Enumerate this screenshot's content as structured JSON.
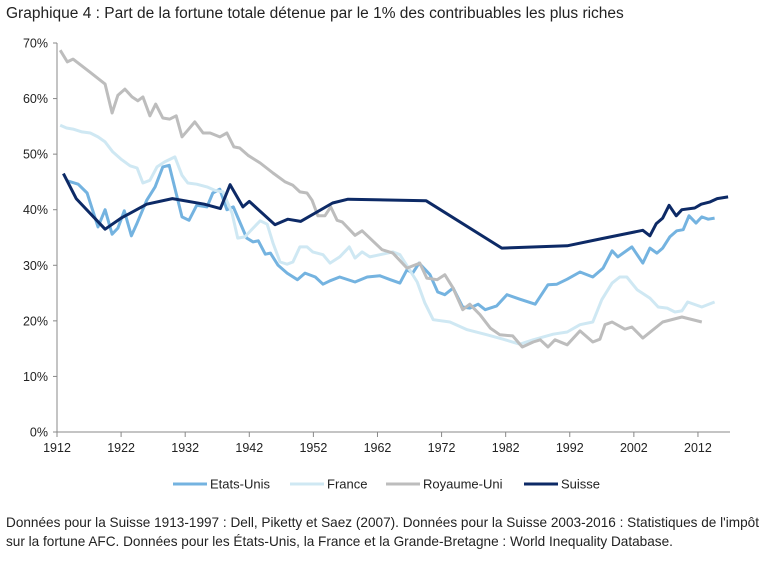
{
  "title": "Graphique 4 : Part de la fortune totale détenue par le 1% des contribuables les plus riches",
  "note": "Données pour la Suisse 1913-1997 : Dell, Piketty et Saez (2007). Données pour la Suisse 2003-2016 : Statistiques de l'impôt sur la fortune AFC. Données pour les États-Unis, la France et la Grande-Bretagne : World Inequality Database.",
  "chart_data": {
    "type": "line",
    "title": "Graphique 4 : Part de la fortune totale détenue par le 1% des contribuables les plus riches",
    "xlabel": "",
    "ylabel": "",
    "xlim": [
      1912,
      2017
    ],
    "ylim": [
      0,
      70
    ],
    "x_ticks": [
      "1912",
      "1922",
      "1932",
      "1942",
      "1952",
      "1962",
      "1972",
      "1982",
      "1992",
      "2002",
      "2012"
    ],
    "y_ticks": [
      "0%",
      "10%",
      "20%",
      "30%",
      "40%",
      "50%",
      "60%",
      "70%"
    ],
    "grid": false,
    "legend_position": "bottom",
    "series": [
      {
        "name": "Etats-Unis",
        "color": "#74b3e0",
        "points": [
          [
            1913.6,
            45.2
          ],
          [
            1915.3,
            44.6
          ],
          [
            1916.7,
            43
          ],
          [
            1918.4,
            36.9
          ],
          [
            1919.5,
            40
          ],
          [
            1920.6,
            35.6
          ],
          [
            1921.5,
            36.7
          ],
          [
            1922.5,
            39.8
          ],
          [
            1923.6,
            35.3
          ],
          [
            1924.5,
            37.6
          ],
          [
            1926,
            41.7
          ],
          [
            1927.3,
            44.1
          ],
          [
            1928.5,
            47.7
          ],
          [
            1929.5,
            48
          ],
          [
            1931.5,
            38.7
          ],
          [
            1932.6,
            38.1
          ],
          [
            1933.8,
            40.8
          ],
          [
            1935.4,
            40.5
          ],
          [
            1936.3,
            43
          ],
          [
            1937.4,
            43.7
          ],
          [
            1938.5,
            40
          ],
          [
            1939.5,
            40.5
          ],
          [
            1941.6,
            34.9
          ],
          [
            1942.6,
            34.2
          ],
          [
            1943.4,
            34.4
          ],
          [
            1944.5,
            32
          ],
          [
            1945.3,
            32.2
          ],
          [
            1946.5,
            30
          ],
          [
            1947.9,
            28.6
          ],
          [
            1949.5,
            27.4
          ],
          [
            1950.7,
            28.6
          ],
          [
            1952.3,
            27.9
          ],
          [
            1953.5,
            26.6
          ],
          [
            1954.6,
            27.2
          ],
          [
            1956.1,
            27.9
          ],
          [
            1958.5,
            27
          ],
          [
            1960.4,
            27.9
          ],
          [
            1962.4,
            28.1
          ],
          [
            1964,
            27.4
          ],
          [
            1965.5,
            26.8
          ],
          [
            1966.6,
            29.2
          ],
          [
            1967.5,
            28.6
          ],
          [
            1968.5,
            30.4
          ],
          [
            1970.2,
            28.3
          ],
          [
            1971.4,
            25.2
          ],
          [
            1972.5,
            24.7
          ],
          [
            1973.8,
            25.9
          ],
          [
            1975.3,
            22.5
          ],
          [
            1976.4,
            22.3
          ],
          [
            1977.7,
            23
          ],
          [
            1978.8,
            22
          ],
          [
            1980.6,
            22.7
          ],
          [
            1982.2,
            24.7
          ],
          [
            1984.2,
            23.9
          ],
          [
            1986.6,
            23
          ],
          [
            1988.6,
            26.5
          ],
          [
            1990,
            26.6
          ],
          [
            1991.6,
            27.5
          ],
          [
            1993.6,
            28.8
          ],
          [
            1995.6,
            27.9
          ],
          [
            1997.2,
            29.5
          ],
          [
            1998.6,
            32.6
          ],
          [
            1999.5,
            31.5
          ],
          [
            2001.7,
            33.3
          ],
          [
            2003.4,
            30.4
          ],
          [
            2004.5,
            33.1
          ],
          [
            2005.6,
            32.2
          ],
          [
            2006.5,
            33.1
          ],
          [
            2007.6,
            35.1
          ],
          [
            2008.7,
            36.2
          ],
          [
            2009.7,
            36.4
          ],
          [
            2010.6,
            38.9
          ],
          [
            2011.7,
            37.6
          ],
          [
            2012.6,
            38.7
          ],
          [
            2013.6,
            38.3
          ],
          [
            2014.6,
            38.5
          ]
        ]
      },
      {
        "name": "France",
        "color": "#cfe8f3",
        "points": [
          [
            1912.5,
            55.2
          ],
          [
            1913.5,
            54.7
          ],
          [
            1914.5,
            54.5
          ],
          [
            1915.9,
            54
          ],
          [
            1917.2,
            53.8
          ],
          [
            1918.4,
            53.1
          ],
          [
            1919.5,
            52.2
          ],
          [
            1920.7,
            50.4
          ],
          [
            1922.1,
            49
          ],
          [
            1923.4,
            47.9
          ],
          [
            1924.5,
            47.5
          ],
          [
            1925.4,
            44.8
          ],
          [
            1926.5,
            45.3
          ],
          [
            1927.6,
            47.7
          ],
          [
            1928.8,
            48.6
          ],
          [
            1930.4,
            49.5
          ],
          [
            1931.5,
            46.2
          ],
          [
            1932.4,
            44.8
          ],
          [
            1933.8,
            44.6
          ],
          [
            1935.4,
            44.1
          ],
          [
            1936.6,
            43.5
          ],
          [
            1937.9,
            43.2
          ],
          [
            1939.3,
            39.4
          ],
          [
            1940.2,
            34.9
          ],
          [
            1941.3,
            35.1
          ],
          [
            1942.6,
            36.7
          ],
          [
            1943.7,
            38
          ],
          [
            1944.8,
            37.4
          ],
          [
            1945.7,
            34
          ],
          [
            1946.8,
            30.6
          ],
          [
            1947.9,
            30.2
          ],
          [
            1948.8,
            30.6
          ],
          [
            1949.9,
            33.3
          ],
          [
            1951,
            33.3
          ],
          [
            1951.9,
            32.4
          ],
          [
            1953.5,
            31.9
          ],
          [
            1954.6,
            30.4
          ],
          [
            1956.1,
            31.5
          ],
          [
            1957.6,
            33.3
          ],
          [
            1958.5,
            31.3
          ],
          [
            1959.6,
            32.4
          ],
          [
            1960.8,
            31.5
          ],
          [
            1962.4,
            31.9
          ],
          [
            1964.4,
            32.4
          ],
          [
            1965.5,
            31.9
          ],
          [
            1967,
            29.2
          ],
          [
            1968.2,
            27
          ],
          [
            1969.4,
            23.2
          ],
          [
            1970.7,
            20.2
          ],
          [
            1973.3,
            19.8
          ],
          [
            1976,
            18.4
          ],
          [
            1979.1,
            17.5
          ],
          [
            1981.6,
            16.7
          ],
          [
            1984.2,
            15.8
          ],
          [
            1986.3,
            16.6
          ],
          [
            1989.4,
            17.6
          ],
          [
            1991.6,
            18
          ],
          [
            1993.6,
            19.3
          ],
          [
            1995.6,
            19.8
          ],
          [
            1997,
            23.8
          ],
          [
            1998.6,
            26.8
          ],
          [
            1999.8,
            27.9
          ],
          [
            2000.9,
            27.9
          ],
          [
            2002.5,
            25.6
          ],
          [
            2004.5,
            24.1
          ],
          [
            2005.8,
            22.5
          ],
          [
            2007.2,
            22.3
          ],
          [
            2008.4,
            21.6
          ],
          [
            2009.5,
            21.8
          ],
          [
            2010.4,
            23.4
          ],
          [
            2012.6,
            22.5
          ],
          [
            2014.6,
            23.4
          ]
        ]
      },
      {
        "name": "Royaume-Uni",
        "color": "#bdbdbd",
        "points": [
          [
            1912.5,
            68.7
          ],
          [
            1913.6,
            66.6
          ],
          [
            1914.5,
            67.1
          ],
          [
            1917.1,
            64.8
          ],
          [
            1919.5,
            62.6
          ],
          [
            1920.6,
            57.4
          ],
          [
            1921.5,
            60.6
          ],
          [
            1922.6,
            61.7
          ],
          [
            1923.7,
            60.3
          ],
          [
            1924.6,
            59.6
          ],
          [
            1925.4,
            60.3
          ],
          [
            1926.5,
            56.9
          ],
          [
            1927.4,
            59
          ],
          [
            1928.5,
            56.5
          ],
          [
            1929.6,
            56.3
          ],
          [
            1930.6,
            56.9
          ],
          [
            1931.5,
            53.1
          ],
          [
            1932.4,
            54.3
          ],
          [
            1933.5,
            55.8
          ],
          [
            1934.8,
            53.8
          ],
          [
            1935.9,
            53.8
          ],
          [
            1937.4,
            53.1
          ],
          [
            1938.5,
            53.8
          ],
          [
            1939.6,
            51.3
          ],
          [
            1940.5,
            51.1
          ],
          [
            1941.8,
            49.8
          ],
          [
            1943.7,
            48.4
          ],
          [
            1945.7,
            46.6
          ],
          [
            1947.6,
            45
          ],
          [
            1948.8,
            44.4
          ],
          [
            1949.9,
            43.2
          ],
          [
            1951,
            43
          ],
          [
            1951.8,
            41.7
          ],
          [
            1952.7,
            38.9
          ],
          [
            1953.8,
            38.9
          ],
          [
            1954.7,
            40.5
          ],
          [
            1955.7,
            38.1
          ],
          [
            1956.5,
            37.8
          ],
          [
            1958.5,
            35.4
          ],
          [
            1959.6,
            36.2
          ],
          [
            1962.7,
            32.8
          ],
          [
            1964.4,
            32.2
          ],
          [
            1966.6,
            29.5
          ],
          [
            1968.6,
            30.4
          ],
          [
            1969.7,
            27.7
          ],
          [
            1971.3,
            27.4
          ],
          [
            1972.5,
            28.3
          ],
          [
            1973.8,
            25.9
          ],
          [
            1975.3,
            22
          ],
          [
            1976.4,
            23
          ],
          [
            1978,
            21.1
          ],
          [
            1979.6,
            18.7
          ],
          [
            1981.1,
            17.5
          ],
          [
            1983.1,
            17.3
          ],
          [
            1984.6,
            15.3
          ],
          [
            1986.3,
            16.2
          ],
          [
            1987.4,
            16.6
          ],
          [
            1988.6,
            15.3
          ],
          [
            1989.7,
            16.6
          ],
          [
            1991.6,
            15.7
          ],
          [
            1993.6,
            18.2
          ],
          [
            1995.6,
            16.2
          ],
          [
            1996.7,
            16.7
          ],
          [
            1997.5,
            19.3
          ],
          [
            1998.6,
            19.8
          ],
          [
            2000.6,
            18.5
          ],
          [
            2001.7,
            18.9
          ],
          [
            2003.4,
            16.9
          ],
          [
            2006.5,
            19.8
          ],
          [
            2009.5,
            20.7
          ],
          [
            2012.6,
            19.8
          ]
        ]
      },
      {
        "name": "Suisse",
        "color": "#0d2a66",
        "points": [
          [
            1913,
            46.5
          ],
          [
            1915,
            42
          ],
          [
            1919.5,
            36.5
          ],
          [
            1922,
            38.5
          ],
          [
            1926,
            41
          ],
          [
            1930,
            42
          ],
          [
            1935,
            41
          ],
          [
            1937.5,
            40.2
          ],
          [
            1939,
            44.5
          ],
          [
            1941,
            40.5
          ],
          [
            1942,
            41.5
          ],
          [
            1946,
            37.3
          ],
          [
            1948,
            38.3
          ],
          [
            1950,
            37.9
          ],
          [
            1955,
            41.2
          ],
          [
            1957.4,
            41.9
          ],
          [
            1969.6,
            41.6
          ],
          [
            1981.4,
            33.1
          ],
          [
            1991.6,
            33.5
          ],
          [
            1997,
            34.8
          ],
          [
            2003.4,
            36.3
          ],
          [
            2004.5,
            35.3
          ],
          [
            2005.5,
            37.5
          ],
          [
            2006.5,
            38.5
          ],
          [
            2007.5,
            40.8
          ],
          [
            2008.6,
            38.9
          ],
          [
            2009.5,
            40
          ],
          [
            2011.5,
            40.3
          ],
          [
            2012.5,
            41
          ],
          [
            2013.9,
            41.4
          ],
          [
            2015,
            42
          ],
          [
            2016.7,
            42.3
          ]
        ]
      }
    ]
  }
}
